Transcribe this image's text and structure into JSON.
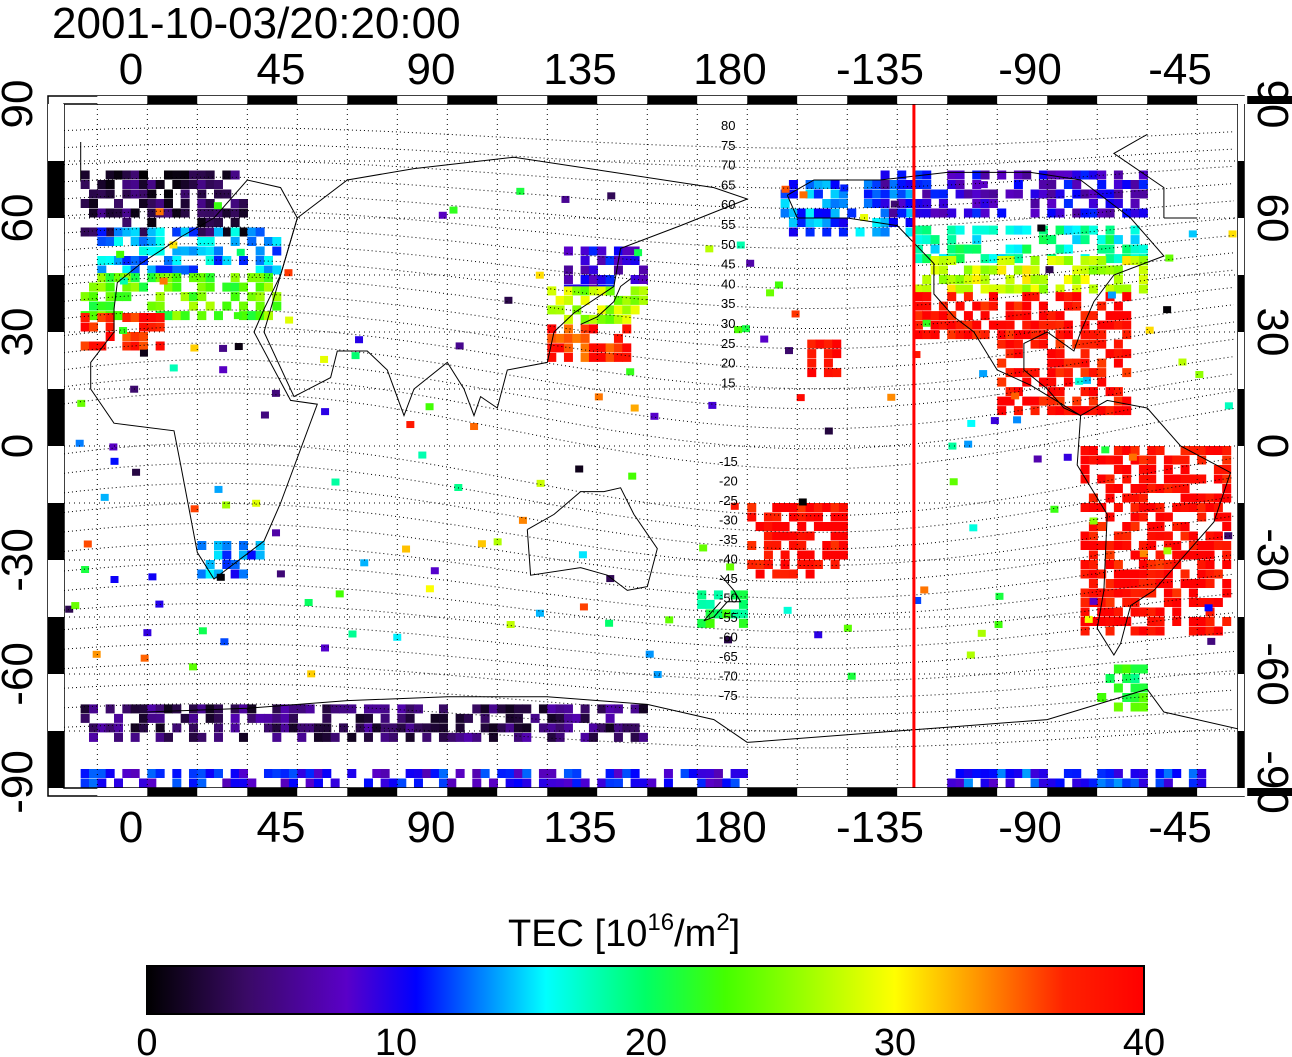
{
  "title": "2001-10-03/20:20:00",
  "axes": {
    "lon_labels": [
      "0",
      "45",
      "90",
      "135",
      "180",
      "-135",
      "-90",
      "-45"
    ],
    "lat_labels": [
      "90",
      "60",
      "30",
      "0",
      "-30",
      "-60",
      "-90"
    ]
  },
  "magnetic_lat_labels_north": [
    "80",
    "75",
    "70",
    "65",
    "60",
    "55",
    "50",
    "45",
    "40",
    "35",
    "30",
    "25",
    "20",
    "15"
  ],
  "magnetic_lat_labels_south": [
    "-15",
    "-20",
    "-25",
    "-30",
    "-35",
    "-40",
    "-45",
    "-50",
    "-55",
    "-60",
    "-65",
    "-70",
    "-75"
  ],
  "colorbar": {
    "label_main": "TEC  [10",
    "label_sup1": "16",
    "label_mid": "/m",
    "label_sup2": "2",
    "label_end": "]",
    "ticks": [
      "0",
      "10",
      "20",
      "30",
      "40"
    ],
    "min": 0,
    "max": 40
  },
  "terminator": {
    "longitude": -130,
    "color": "#ff0000"
  },
  "colors": {
    "stops": [
      "#000000",
      "#3a0a66",
      "#5a00c8",
      "#0000ff",
      "#0078ff",
      "#00ffff",
      "#00ff66",
      "#44ff00",
      "#ffff00",
      "#ff9900",
      "#ff2200",
      "#ff0000"
    ]
  },
  "tec_regions": [
    {
      "name": "europe-high",
      "lon": [
        -20,
        30
      ],
      "lat": [
        55,
        72
      ],
      "tec": 3
    },
    {
      "name": "europe-mid",
      "lon": [
        -15,
        40
      ],
      "lat": [
        45,
        56
      ],
      "tec": 14
    },
    {
      "name": "europe-low",
      "lon": [
        -20,
        40
      ],
      "lat": [
        33,
        45
      ],
      "tec": 24
    },
    {
      "name": "iberia",
      "lon": [
        -20,
        5
      ],
      "lat": [
        25,
        33
      ],
      "tec": 38
    },
    {
      "name": "east-asia-high",
      "lon": [
        125,
        150
      ],
      "lat": [
        40,
        52
      ],
      "tec": 9
    },
    {
      "name": "east-asia-mid",
      "lon": [
        120,
        148
      ],
      "lat": [
        32,
        40
      ],
      "tec": 27
    },
    {
      "name": "east-asia-low",
      "lon": [
        120,
        145
      ],
      "lat": [
        22,
        32
      ],
      "tec": 37
    },
    {
      "name": "alaska",
      "lon": [
        -170,
        -130
      ],
      "lat": [
        55,
        68
      ],
      "tec": 13
    },
    {
      "name": "north-america-n",
      "lon": [
        -130,
        -60
      ],
      "lat": [
        48,
        58
      ],
      "tec": 18
    },
    {
      "name": "north-america-mid",
      "lon": [
        -130,
        -60
      ],
      "lat": [
        40,
        48
      ],
      "tec": 28
    },
    {
      "name": "north-america-s",
      "lon": [
        -130,
        -65
      ],
      "lat": [
        28,
        40
      ],
      "tec": 39
    },
    {
      "name": "caribbean",
      "lon": [
        -105,
        -65
      ],
      "lat": [
        8,
        28
      ],
      "tec": 39
    },
    {
      "name": "south-america",
      "lon": [
        -80,
        -35
      ],
      "lat": [
        -50,
        0
      ],
      "tec": 39
    },
    {
      "name": "patagonia",
      "lon": [
        -75,
        -60
      ],
      "lat": [
        -70,
        -58
      ],
      "tec": 22
    },
    {
      "name": "hawaii",
      "lon": [
        -162,
        -152
      ],
      "lat": [
        18,
        26
      ],
      "tec": 39
    },
    {
      "name": "pacific-south",
      "lon": [
        -180,
        -150
      ],
      "lat": [
        -35,
        -15
      ],
      "tec": 39
    },
    {
      "name": "new-zealand",
      "lon": [
        165,
        180
      ],
      "lat": [
        -48,
        -38
      ],
      "tec": 21
    },
    {
      "name": "south-africa",
      "lon": [
        15,
        35
      ],
      "lat": [
        -35,
        -25
      ],
      "tec": 13
    },
    {
      "name": "antarctica-band",
      "lon": [
        -20,
        150
      ],
      "lat": [
        -78,
        -68
      ],
      "tec": 4
    },
    {
      "name": "pole-strip",
      "lon": [
        -20,
        180
      ],
      "lat": [
        -90,
        -86
      ],
      "tec": 10
    },
    {
      "name": "pole-strip-west",
      "lon": [
        -120,
        -40
      ],
      "lat": [
        -90,
        -86
      ],
      "tec": 11
    },
    {
      "name": "arctic-canada",
      "lon": [
        -140,
        -60
      ],
      "lat": [
        60,
        72
      ],
      "tec": 9
    }
  ]
}
